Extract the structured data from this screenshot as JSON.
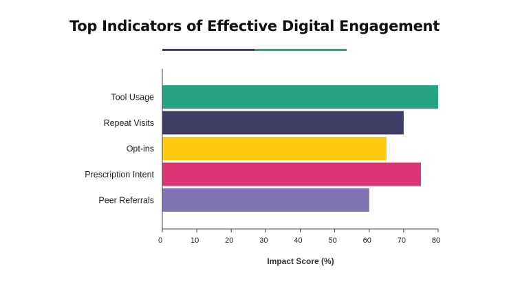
{
  "title": "Top Indicators of Effective Digital Engagement",
  "colors": {
    "underline_left": "#3f3d66",
    "underline_right": "#26a383"
  },
  "chart_data": {
    "type": "bar",
    "orientation": "horizontal",
    "categories": [
      "Tool Usage",
      "Repeat Visits",
      "Opt-ins",
      "Prescription Intent",
      "Peer Referrals"
    ],
    "values": [
      80,
      70,
      65,
      75,
      60
    ],
    "colors": [
      "#26a383",
      "#3f3d66",
      "#ffc90e",
      "#dd3475",
      "#8074b3"
    ],
    "title": "Top Indicators of Effective Digital Engagement",
    "xlabel": "Impact Score (%)",
    "ylabel": "",
    "xlim": [
      0,
      80
    ],
    "xticks": [
      0,
      10,
      20,
      30,
      40,
      50,
      60,
      70,
      80
    ],
    "grid": false
  }
}
